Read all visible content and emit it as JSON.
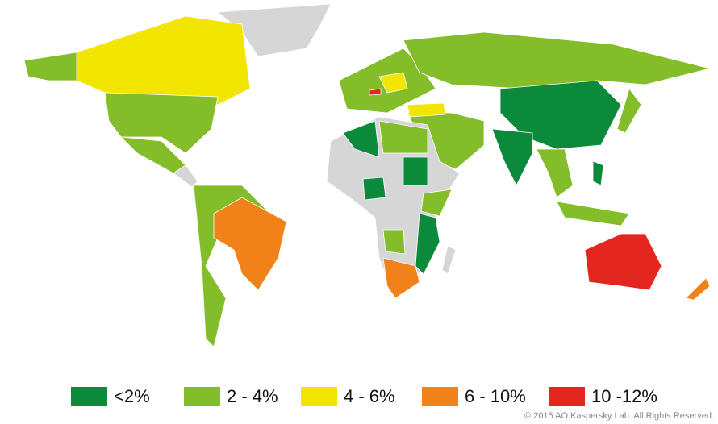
{
  "legend": {
    "items": [
      {
        "label": "<2%",
        "color": "#0b8a3c"
      },
      {
        "label": "2 - 4%",
        "color": "#84bd2a"
      },
      {
        "label": "4 - 6%",
        "color": "#f2e500"
      },
      {
        "label": "6 - 10%",
        "color": "#f08219"
      },
      {
        "label": "10 -12%",
        "color": "#e3261f"
      }
    ]
  },
  "copyright": "© 2015 AO Kaspersky Lab. All Rights Reserved."
}
